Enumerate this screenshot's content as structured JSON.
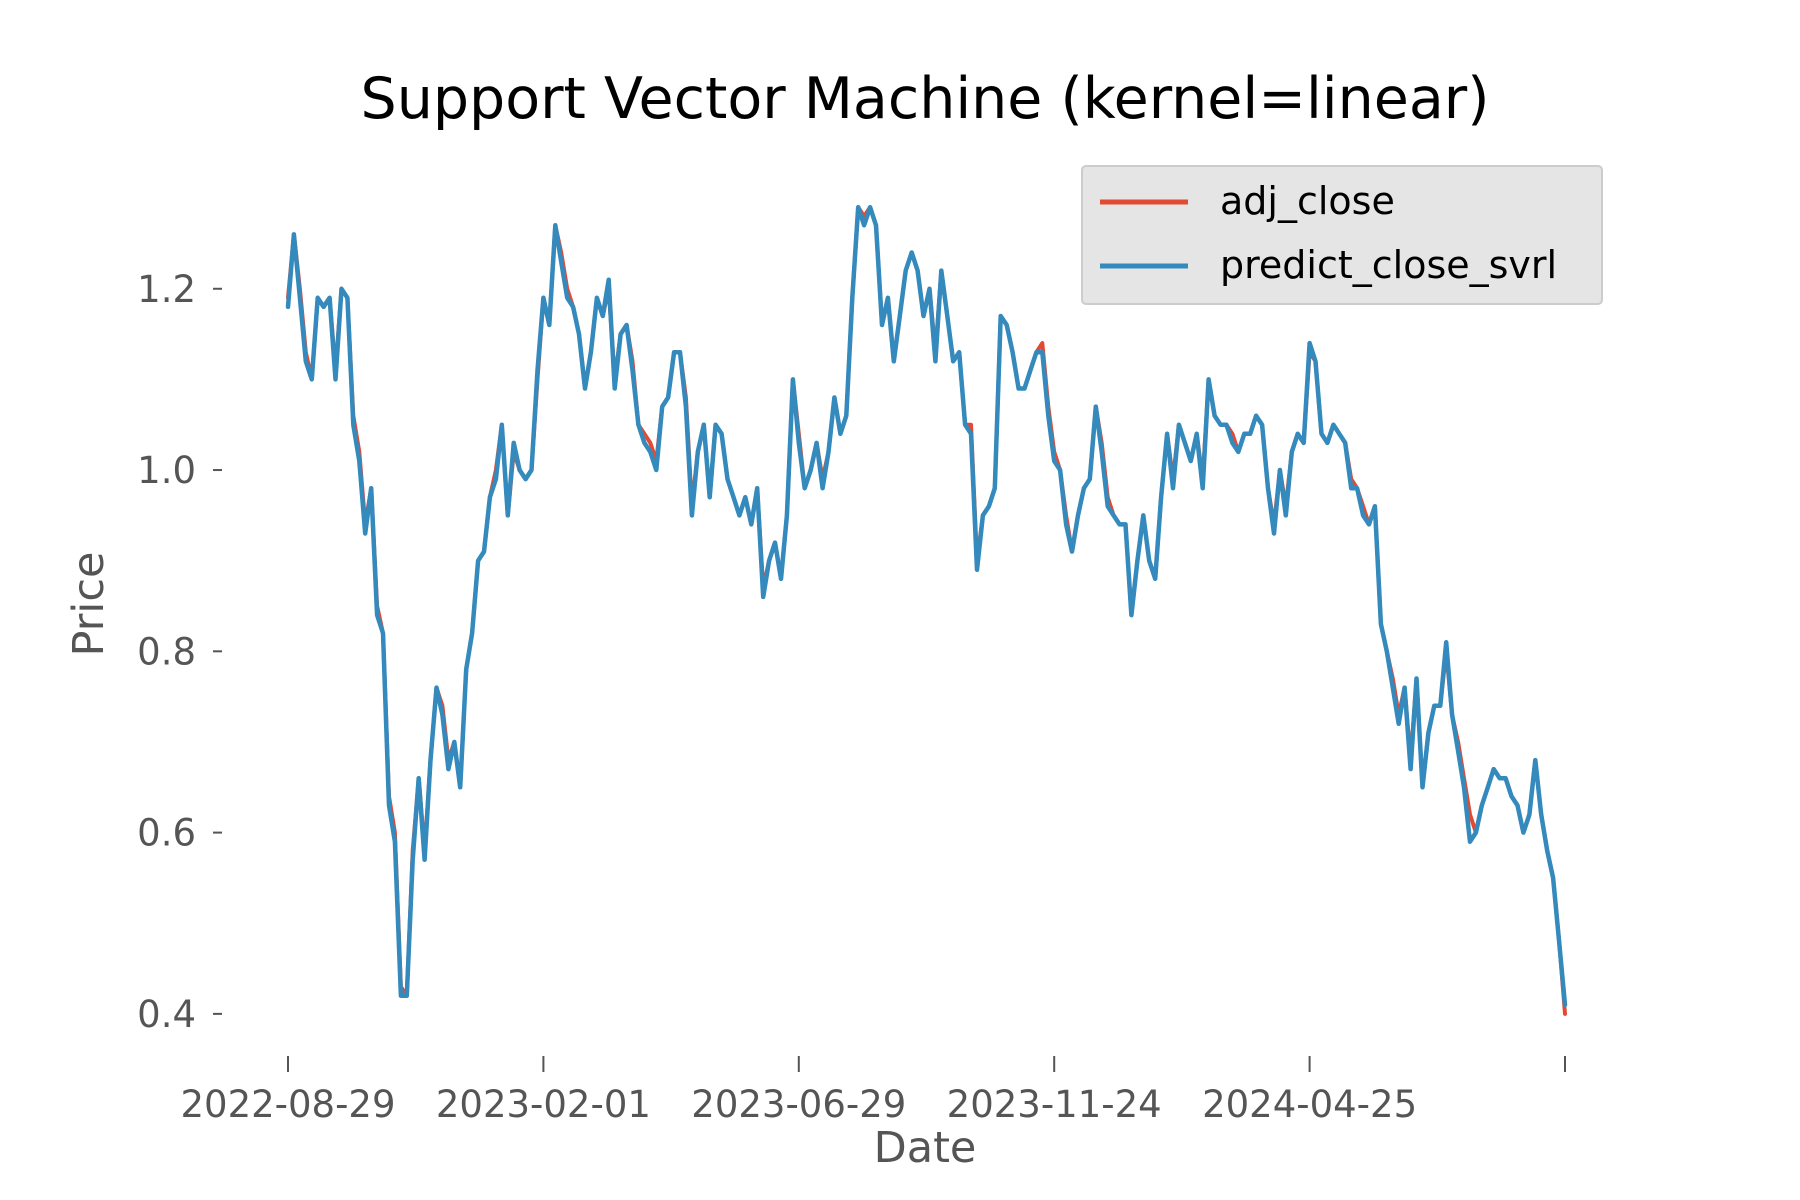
{
  "chart_data": {
    "type": "line",
    "title": "Support Vector Machine (kernel=linear)",
    "xlabel": "Date",
    "ylabel": "Price",
    "x_tick_labels": [
      "2022-08-29",
      "2023-02-01",
      "2023-06-29",
      "2023-11-24",
      "2024-04-25",
      ""
    ],
    "y_tick_labels": [
      "0.4",
      "0.6",
      "0.8",
      "1.0",
      "1.2"
    ],
    "y_ticks": [
      0.4,
      0.6,
      0.8,
      1.0,
      1.2
    ],
    "ylim": [
      0.38,
      1.32
    ],
    "grid": false,
    "legend_position": "top-right",
    "series": [
      {
        "name": "adj_close",
        "color": "#e24a33",
        "values": [
          1.19,
          1.26,
          1.2,
          1.13,
          1.1,
          1.19,
          1.18,
          1.19,
          1.11,
          1.2,
          1.19,
          1.06,
          1.02,
          0.94,
          0.98,
          0.85,
          0.82,
          0.64,
          0.6,
          0.43,
          0.42,
          0.58,
          0.66,
          0.58,
          0.68,
          0.76,
          0.74,
          0.68,
          0.7,
          0.65,
          0.78,
          0.82,
          0.9,
          0.91,
          0.97,
          1.0,
          1.05,
          0.95,
          1.02,
          1.0,
          0.99,
          1.0,
          1.1,
          1.19,
          1.16,
          1.27,
          1.24,
          1.2,
          1.18,
          1.15,
          1.09,
          1.13,
          1.19,
          1.17,
          1.2,
          1.1,
          1.15,
          1.16,
          1.12,
          1.05,
          1.04,
          1.03,
          1.01,
          1.07,
          1.08,
          1.13,
          1.13,
          1.08,
          0.96,
          1.02,
          1.05,
          0.97,
          1.05,
          1.04,
          0.99,
          0.97,
          0.95,
          0.97,
          0.94,
          0.98,
          0.87,
          0.9,
          0.92,
          0.88,
          0.95,
          1.1,
          1.04,
          0.98,
          1.0,
          1.03,
          0.99,
          1.02,
          1.08,
          1.04,
          1.06,
          1.19,
          1.29,
          1.28,
          1.29,
          1.27,
          1.16,
          1.19,
          1.12,
          1.17,
          1.22,
          1.24,
          1.22,
          1.17,
          1.2,
          1.13,
          1.22,
          1.17,
          1.12,
          1.13,
          1.05,
          1.05,
          0.9,
          0.95,
          0.96,
          0.98,
          1.17,
          1.16,
          1.13,
          1.09,
          1.09,
          1.11,
          1.13,
          1.14,
          1.07,
          1.02,
          1.0,
          0.95,
          0.91,
          0.95,
          0.98,
          0.99,
          1.07,
          1.03,
          0.97,
          0.95,
          0.94,
          0.94,
          0.84,
          0.9,
          0.95,
          0.9,
          0.88,
          0.97,
          1.04,
          0.99,
          1.05,
          1.03,
          1.01,
          1.04,
          0.99,
          1.1,
          1.06,
          1.05,
          1.05,
          1.04,
          1.02,
          1.04,
          1.04,
          1.06,
          1.05,
          0.98,
          0.94,
          1.0,
          0.96,
          1.02,
          1.04,
          1.03,
          1.13,
          1.12,
          1.04,
          1.03,
          1.05,
          1.04,
          1.03,
          0.99,
          0.98,
          0.96,
          0.94,
          0.96,
          0.83,
          0.8,
          0.77,
          0.73,
          0.76,
          0.68,
          0.77,
          0.65,
          0.71,
          0.74,
          0.74,
          0.8,
          0.73,
          0.7,
          0.66,
          0.62,
          0.6,
          0.63,
          0.65,
          0.67,
          0.66,
          0.66,
          0.64,
          0.63,
          0.6,
          0.62,
          0.68,
          0.62,
          0.58,
          0.55,
          0.48,
          0.4
        ]
      },
      {
        "name": "predict_close_svrl",
        "color": "#348abd",
        "values": [
          1.18,
          1.26,
          1.19,
          1.12,
          1.1,
          1.19,
          1.18,
          1.19,
          1.1,
          1.2,
          1.19,
          1.05,
          1.01,
          0.93,
          0.98,
          0.84,
          0.82,
          0.63,
          0.59,
          0.42,
          0.42,
          0.57,
          0.66,
          0.57,
          0.68,
          0.76,
          0.73,
          0.67,
          0.7,
          0.65,
          0.78,
          0.82,
          0.9,
          0.91,
          0.97,
          0.99,
          1.05,
          0.95,
          1.03,
          1.0,
          0.99,
          1.0,
          1.11,
          1.19,
          1.16,
          1.27,
          1.23,
          1.19,
          1.18,
          1.15,
          1.09,
          1.13,
          1.19,
          1.17,
          1.21,
          1.09,
          1.15,
          1.16,
          1.11,
          1.05,
          1.03,
          1.02,
          1.0,
          1.07,
          1.08,
          1.13,
          1.13,
          1.07,
          0.95,
          1.02,
          1.05,
          0.97,
          1.05,
          1.04,
          0.99,
          0.97,
          0.95,
          0.97,
          0.94,
          0.98,
          0.86,
          0.9,
          0.92,
          0.88,
          0.95,
          1.1,
          1.03,
          0.98,
          1.0,
          1.03,
          0.98,
          1.02,
          1.08,
          1.04,
          1.06,
          1.19,
          1.29,
          1.27,
          1.29,
          1.27,
          1.16,
          1.19,
          1.12,
          1.17,
          1.22,
          1.24,
          1.22,
          1.17,
          1.2,
          1.12,
          1.22,
          1.17,
          1.12,
          1.13,
          1.05,
          1.04,
          0.89,
          0.95,
          0.96,
          0.98,
          1.17,
          1.16,
          1.13,
          1.09,
          1.09,
          1.11,
          1.13,
          1.13,
          1.06,
          1.01,
          1.0,
          0.94,
          0.91,
          0.95,
          0.98,
          0.99,
          1.07,
          1.02,
          0.96,
          0.95,
          0.94,
          0.94,
          0.84,
          0.9,
          0.95,
          0.9,
          0.88,
          0.97,
          1.04,
          0.98,
          1.05,
          1.03,
          1.01,
          1.04,
          0.98,
          1.1,
          1.06,
          1.05,
          1.05,
          1.03,
          1.02,
          1.04,
          1.04,
          1.06,
          1.05,
          0.98,
          0.93,
          1.0,
          0.95,
          1.02,
          1.04,
          1.03,
          1.14,
          1.12,
          1.04,
          1.03,
          1.05,
          1.04,
          1.03,
          0.98,
          0.98,
          0.95,
          0.94,
          0.96,
          0.83,
          0.8,
          0.76,
          0.72,
          0.76,
          0.67,
          0.77,
          0.65,
          0.71,
          0.74,
          0.74,
          0.81,
          0.73,
          0.69,
          0.65,
          0.59,
          0.6,
          0.63,
          0.65,
          0.67,
          0.66,
          0.66,
          0.64,
          0.63,
          0.6,
          0.62,
          0.68,
          0.62,
          0.58,
          0.55,
          0.48,
          0.41
        ]
      }
    ]
  }
}
